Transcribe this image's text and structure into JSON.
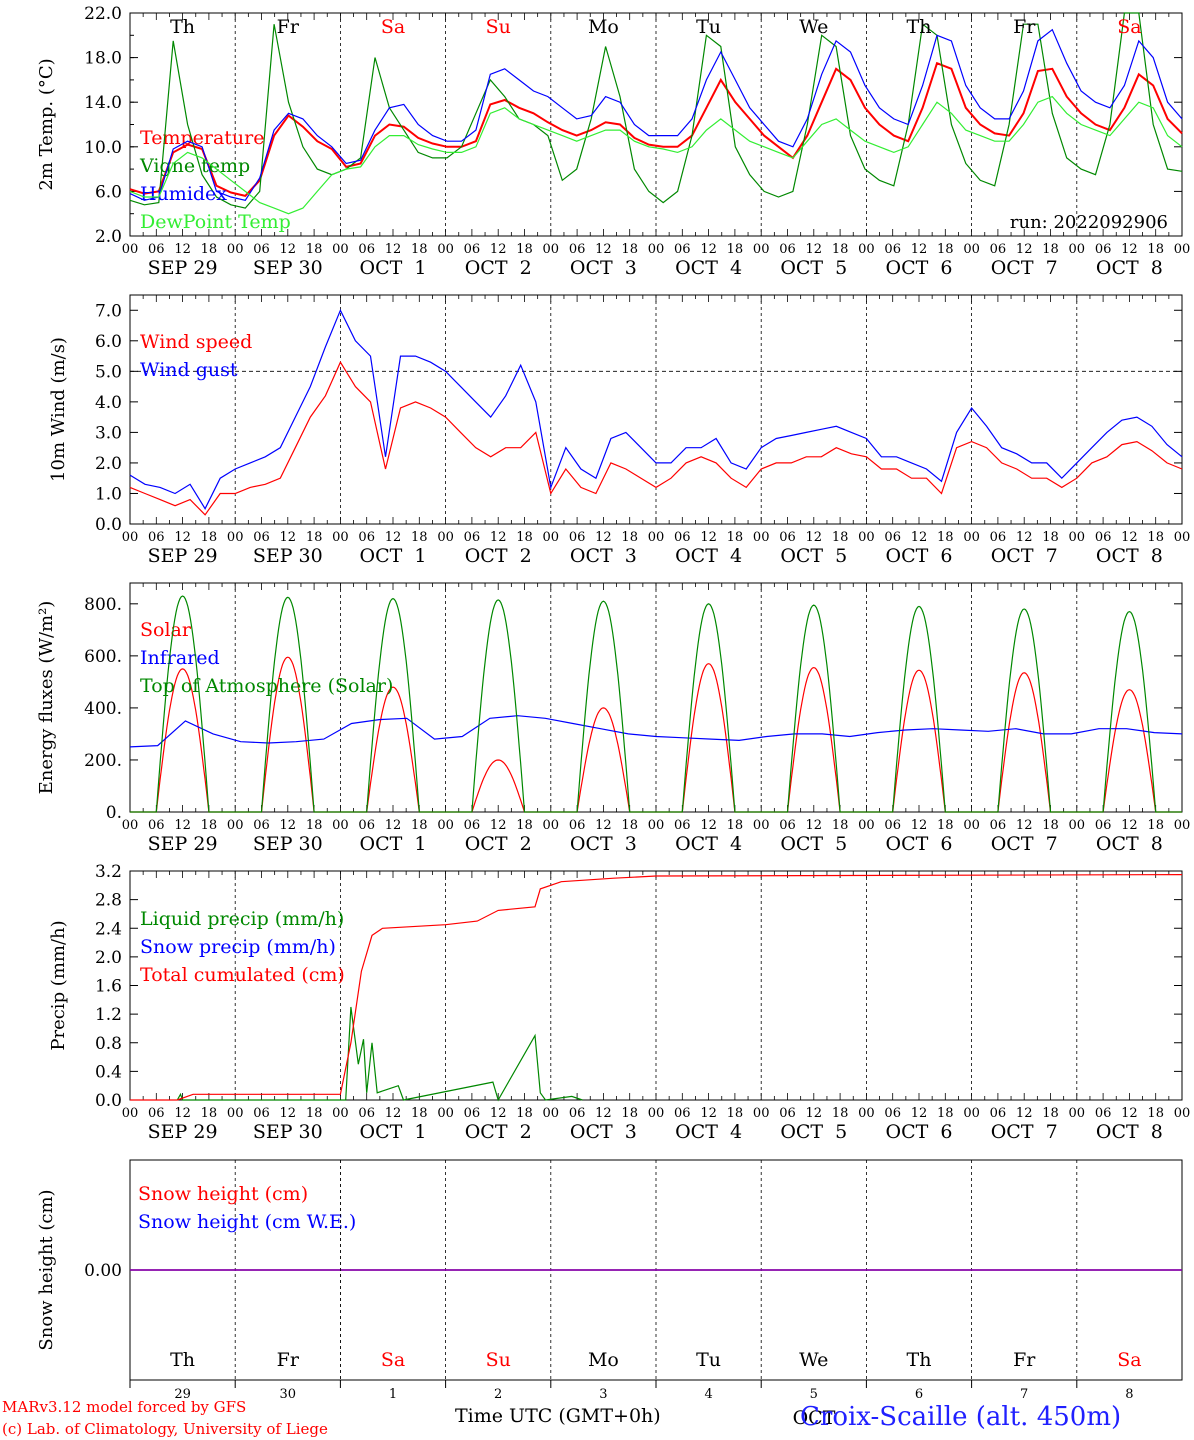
{
  "days": [
    {
      "date": "SEP 29",
      "dow": "Th",
      "weekend": false,
      "num": "29"
    },
    {
      "date": "SEP 30",
      "dow": "Fr",
      "weekend": false,
      "num": "30"
    },
    {
      "date": "OCT  1",
      "dow": "Sa",
      "weekend": true,
      "num": "1"
    },
    {
      "date": "OCT  2",
      "dow": "Su",
      "weekend": true,
      "num": "2"
    },
    {
      "date": "OCT  3",
      "dow": "Mo",
      "weekend": false,
      "num": "3"
    },
    {
      "date": "OCT  4",
      "dow": "Tu",
      "weekend": false,
      "num": "4"
    },
    {
      "date": "OCT  5",
      "dow": "We",
      "weekend": false,
      "num": "5"
    },
    {
      "date": "OCT  6",
      "dow": "Th",
      "weekend": false,
      "num": "6"
    },
    {
      "date": "OCT  7",
      "dow": "Fr",
      "weekend": false,
      "num": "7"
    },
    {
      "date": "OCT  8",
      "dow": "Sa",
      "weekend": true,
      "num": "8"
    }
  ],
  "hour_ticks": [
    "00",
    "06",
    "12",
    "18"
  ],
  "colors": {
    "red": "#ff0000",
    "green": "#008800",
    "blue": "#0000ff",
    "lightgreen": "#33ee33",
    "purple": "#8800aa",
    "weekend": "#ff0000"
  },
  "footer": {
    "credit_line1": "MARv3.12 model forced by GFS",
    "credit_line2": "(c) Lab. of Climatology, University of Liege",
    "xaxis_title": "Time UTC (GMT+0h)",
    "station": "Croix-Scaille (alt. 450m)",
    "overlap_text": "OCT"
  },
  "chart_data": [
    {
      "type": "line",
      "ylabel": "2m Temp. (°C)",
      "ylim": [
        2.0,
        22.0
      ],
      "yticks": [
        "2.0",
        "6.0",
        "10.0",
        "14.0",
        "18.0",
        "22.0"
      ],
      "annotation": "run: 2022092906",
      "series": [
        {
          "name": "Temperature",
          "color": "red",
          "values": [
            6.2,
            5.8,
            6.0,
            9.5,
            10.2,
            9.8,
            6.5,
            5.9,
            5.6,
            7.0,
            11.0,
            12.8,
            11.8,
            10.5,
            9.8,
            8.2,
            8.5,
            11.0,
            12.0,
            11.8,
            10.8,
            10.3,
            10.0,
            10.0,
            10.5,
            13.8,
            14.2,
            13.5,
            13.0,
            12.2,
            11.5,
            11.0,
            11.5,
            12.2,
            12.0,
            10.8,
            10.2,
            10.0,
            10.0,
            11.0,
            13.5,
            16.0,
            14.0,
            12.5,
            11.0,
            10.0,
            9.0,
            11.0,
            14.0,
            17.0,
            16.0,
            13.5,
            12.0,
            11.0,
            10.5,
            13.5,
            17.5,
            17.0,
            13.5,
            12.0,
            11.2,
            11.0,
            13.0,
            16.8,
            17.0,
            14.5,
            13.0,
            12.0,
            11.5,
            13.5,
            16.5,
            15.5,
            12.5,
            11.2
          ]
        },
        {
          "name": "Vigne temp",
          "color": "green",
          "values": [
            5.2,
            4.8,
            5.0,
            19.5,
            12.0,
            7.5,
            5.5,
            4.8,
            4.5,
            6.0,
            21.0,
            14.0,
            10.0,
            8.0,
            7.5,
            8.0,
            9.0,
            18.0,
            13.5,
            11.5,
            9.5,
            9.0,
            9.0,
            10.0,
            13.0,
            16.0,
            14.5,
            12.5,
            12.0,
            11.0,
            7.0,
            8.0,
            12.5,
            19.0,
            14.5,
            8.0,
            6.0,
            5.0,
            6.0,
            11.0,
            20.0,
            19.0,
            10.0,
            7.5,
            6.0,
            5.5,
            6.0,
            12.0,
            20.0,
            19.0,
            11.0,
            8.0,
            7.0,
            6.5,
            12.0,
            21.0,
            20.0,
            12.0,
            8.5,
            7.0,
            6.5,
            12.0,
            21.0,
            21.0,
            13.0,
            9.0,
            8.0,
            7.5,
            12.0,
            22.0,
            22.0,
            12.0,
            8.0,
            7.8
          ]
        },
        {
          "name": "Humidex",
          "color": "blue",
          "values": [
            5.8,
            5.2,
            5.5,
            9.8,
            10.5,
            10.0,
            6.0,
            5.5,
            5.2,
            7.2,
            11.5,
            13.0,
            12.5,
            11.0,
            10.0,
            8.5,
            8.8,
            11.5,
            13.5,
            13.8,
            12.0,
            11.0,
            10.5,
            10.5,
            11.5,
            16.5,
            17.0,
            16.0,
            15.0,
            14.5,
            13.5,
            12.5,
            12.8,
            14.5,
            14.0,
            12.0,
            11.0,
            11.0,
            11.0,
            12.5,
            16.0,
            18.5,
            16.0,
            13.5,
            12.0,
            10.5,
            10.0,
            12.5,
            16.5,
            19.5,
            18.5,
            15.5,
            13.5,
            12.5,
            12.0,
            15.5,
            20.0,
            19.5,
            15.5,
            13.5,
            12.5,
            12.5,
            15.0,
            19.5,
            20.5,
            17.5,
            15.0,
            14.0,
            13.5,
            15.5,
            19.5,
            18.0,
            14.0,
            12.5
          ]
        },
        {
          "name": "DewPoint Temp",
          "color": "lightgreen",
          "values": [
            6.0,
            5.5,
            5.5,
            8.5,
            9.5,
            9.0,
            8.0,
            7.0,
            6.0,
            5.0,
            4.5,
            4.0,
            4.5,
            6.0,
            7.5,
            8.0,
            8.2,
            10.0,
            11.0,
            11.0,
            10.2,
            9.8,
            9.5,
            9.5,
            10.0,
            13.0,
            13.5,
            12.5,
            12.0,
            11.5,
            11.0,
            10.5,
            11.0,
            11.5,
            11.5,
            10.5,
            10.0,
            9.8,
            9.5,
            10.0,
            11.5,
            12.5,
            11.5,
            10.5,
            10.0,
            9.5,
            9.0,
            10.5,
            12.0,
            12.5,
            11.5,
            10.5,
            10.0,
            9.5,
            10.0,
            12.0,
            14.0,
            13.0,
            11.5,
            11.0,
            10.5,
            10.5,
            12.0,
            14.0,
            14.5,
            13.0,
            12.0,
            11.5,
            11.0,
            12.5,
            14.0,
            13.5,
            11.0,
            10.0
          ]
        }
      ]
    },
    {
      "type": "line",
      "ylabel": "10m Wind (m/s)",
      "ylim": [
        0.0,
        7.5
      ],
      "yticks": [
        "0.0",
        "1.0",
        "2.0",
        "3.0",
        "4.0",
        "5.0",
        "6.0",
        "7.0"
      ],
      "reference_line": 5.0,
      "series": [
        {
          "name": "Wind speed",
          "color": "red",
          "values": [
            1.2,
            1.0,
            0.8,
            0.6,
            0.8,
            0.3,
            1.0,
            1.0,
            1.2,
            1.3,
            1.5,
            2.5,
            3.5,
            4.2,
            5.3,
            4.5,
            4.0,
            1.8,
            3.8,
            4.0,
            3.8,
            3.5,
            3.0,
            2.5,
            2.2,
            2.5,
            2.5,
            3.0,
            1.0,
            1.8,
            1.2,
            1.0,
            2.0,
            1.8,
            1.5,
            1.2,
            1.5,
            2.0,
            2.2,
            2.0,
            1.5,
            1.2,
            1.8,
            2.0,
            2.0,
            2.2,
            2.2,
            2.5,
            2.3,
            2.2,
            1.8,
            1.8,
            1.5,
            1.5,
            1.0,
            2.5,
            2.7,
            2.5,
            2.0,
            1.8,
            1.5,
            1.5,
            1.2,
            1.5,
            2.0,
            2.2,
            2.6,
            2.7,
            2.4,
            2.0,
            1.8
          ]
        },
        {
          "name": "Wind gust",
          "color": "blue",
          "values": [
            1.6,
            1.3,
            1.2,
            1.0,
            1.3,
            0.5,
            1.5,
            1.8,
            2.0,
            2.2,
            2.5,
            3.5,
            4.5,
            5.8,
            7.0,
            6.0,
            5.5,
            2.2,
            5.5,
            5.5,
            5.3,
            5.0,
            4.5,
            4.0,
            3.5,
            4.2,
            5.2,
            4.0,
            1.2,
            2.5,
            1.8,
            1.5,
            2.8,
            3.0,
            2.5,
            2.0,
            2.0,
            2.5,
            2.5,
            2.8,
            2.0,
            1.8,
            2.5,
            2.8,
            2.9,
            3.0,
            3.1,
            3.2,
            3.0,
            2.8,
            2.2,
            2.2,
            2.0,
            1.8,
            1.4,
            3.0,
            3.8,
            3.2,
            2.5,
            2.3,
            2.0,
            2.0,
            1.5,
            2.0,
            2.5,
            3.0,
            3.4,
            3.5,
            3.2,
            2.6,
            2.2
          ]
        }
      ]
    },
    {
      "type": "line",
      "ylabel": "Energy fluxes (W/m²)",
      "ylim": [
        0,
        880
      ],
      "yticks": [
        "0.",
        "200.",
        "400.",
        "600.",
        "800."
      ],
      "series": [
        {
          "name": "Solar",
          "color": "red",
          "daily_peaks": [
            550,
            595,
            480,
            200,
            400,
            570,
            555,
            545,
            535,
            470
          ]
        },
        {
          "name": "Infrared",
          "color": "blue",
          "values": [
            250,
            255,
            350,
            300,
            270,
            265,
            270,
            280,
            340,
            355,
            360,
            280,
            290,
            360,
            370,
            360,
            340,
            320,
            300,
            290,
            285,
            280,
            275,
            290,
            300,
            300,
            290,
            305,
            315,
            320,
            315,
            310,
            320,
            300,
            300,
            320,
            320,
            305,
            300
          ]
        },
        {
          "name": "Top of Atmosphere (Solar)",
          "color": "green",
          "daily_peaks": [
            830,
            825,
            820,
            815,
            810,
            800,
            795,
            790,
            780,
            770
          ]
        }
      ]
    },
    {
      "type": "line",
      "ylabel": "Precip (mm/h)",
      "ylim": [
        0.0,
        3.2
      ],
      "yticks": [
        "0.0",
        "0.4",
        "0.8",
        "1.2",
        "1.6",
        "2.0",
        "2.4",
        "2.8",
        "3.2"
      ],
      "series": [
        {
          "name": "Liquid precip (mm/h)",
          "color": "green",
          "points": [
            [
              0.45,
              0.0
            ],
            [
              0.48,
              0.08
            ],
            [
              0.5,
              0.0
            ],
            [
              2.05,
              0.0
            ],
            [
              2.1,
              1.3
            ],
            [
              2.17,
              0.5
            ],
            [
              2.22,
              0.85
            ],
            [
              2.25,
              0.1
            ],
            [
              2.3,
              0.8
            ],
            [
              2.35,
              0.1
            ],
            [
              2.55,
              0.2
            ],
            [
              2.6,
              0.0
            ],
            [
              3.45,
              0.25
            ],
            [
              3.5,
              0.0
            ],
            [
              3.85,
              0.9
            ],
            [
              3.9,
              0.1
            ],
            [
              3.95,
              0.0
            ],
            [
              4.2,
              0.05
            ],
            [
              4.3,
              0.0
            ]
          ]
        },
        {
          "name": "Snow precip (mm/h)",
          "color": "blue",
          "points": []
        },
        {
          "name": "Total cumulated (cm)",
          "color": "red",
          "points": [
            [
              0.0,
              0.0
            ],
            [
              0.45,
              0.0
            ],
            [
              0.6,
              0.08
            ],
            [
              2.0,
              0.08
            ],
            [
              2.1,
              0.8
            ],
            [
              2.2,
              1.8
            ],
            [
              2.3,
              2.3
            ],
            [
              2.4,
              2.4
            ],
            [
              3.0,
              2.45
            ],
            [
              3.3,
              2.5
            ],
            [
              3.5,
              2.65
            ],
            [
              3.85,
              2.7
            ],
            [
              3.9,
              2.95
            ],
            [
              4.1,
              3.05
            ],
            [
              4.6,
              3.1
            ],
            [
              5.0,
              3.13
            ],
            [
              10.0,
              3.15
            ]
          ]
        }
      ]
    },
    {
      "type": "line",
      "ylabel": "Snow height (cm)",
      "ylim": [
        -1.0,
        1.0
      ],
      "yticks": [
        "0.00"
      ],
      "series": [
        {
          "name": "Snow height (cm)",
          "color": "red",
          "values": [
            0,
            0
          ]
        },
        {
          "name": "Snow height (cm W.E.)",
          "color": "blue",
          "values": [
            0,
            0
          ]
        }
      ]
    }
  ]
}
